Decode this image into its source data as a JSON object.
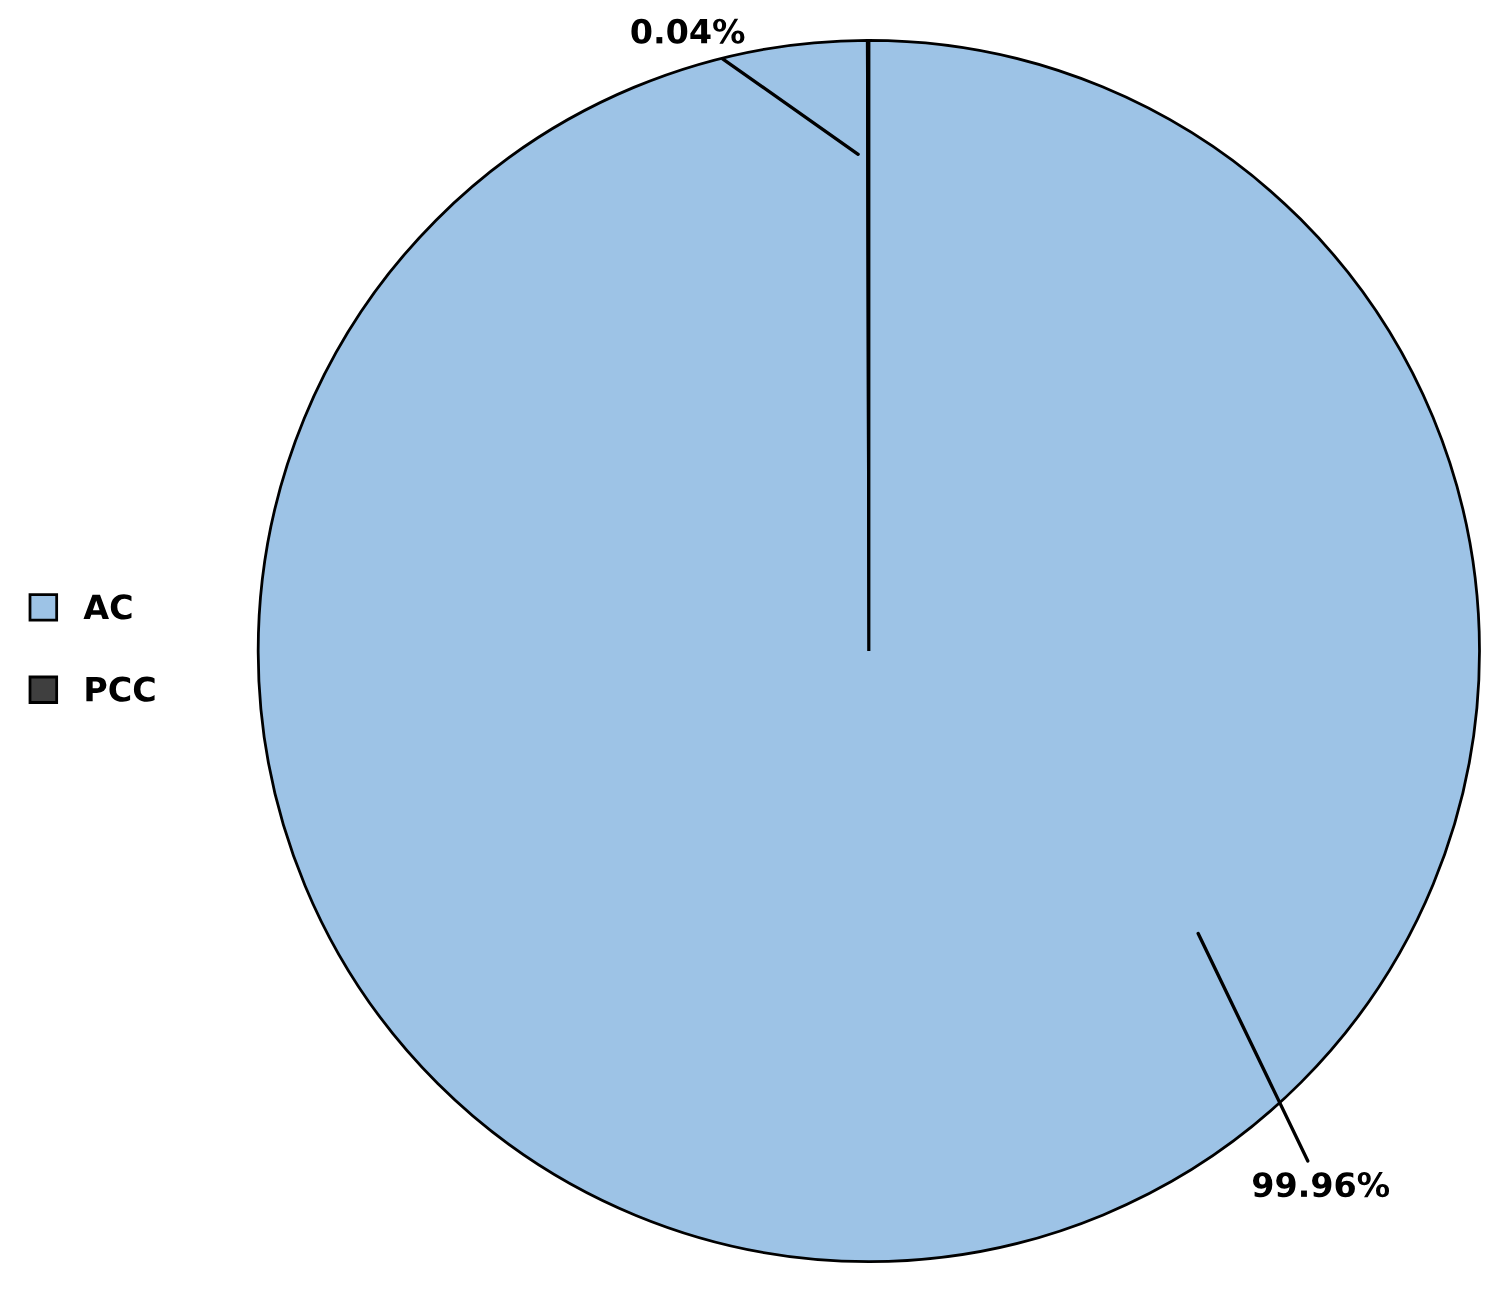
{
  "chart_data": {
    "type": "pie",
    "categories": [
      "AC",
      "PCC"
    ],
    "values": [
      99.96,
      0.04
    ],
    "colors": [
      "#9dc3e6",
      "#3f3f3f"
    ],
    "value_labels": [
      "99.96%",
      "0.04%"
    ],
    "legend": "left"
  }
}
